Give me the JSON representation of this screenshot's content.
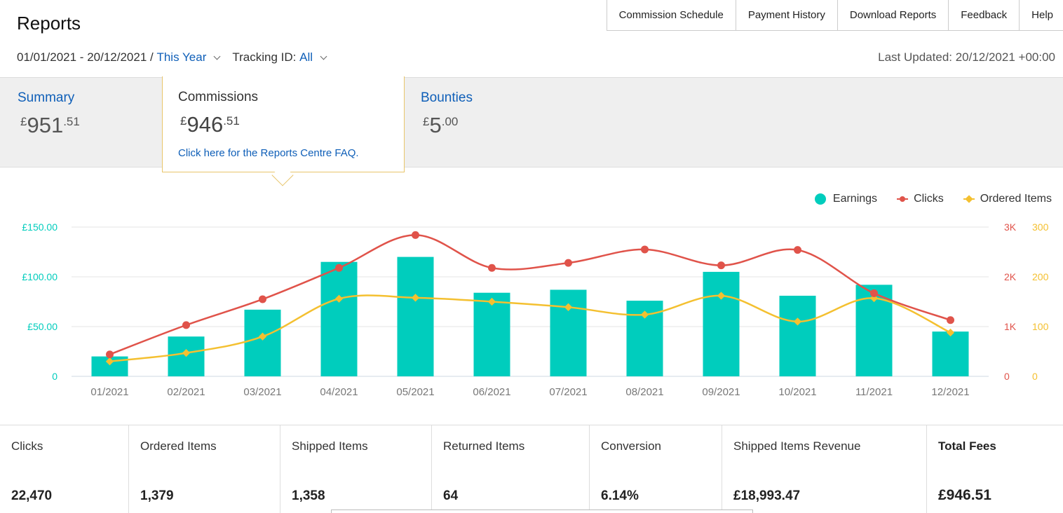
{
  "page": {
    "title": "Reports"
  },
  "top_nav": [
    "Commission Schedule",
    "Payment History",
    "Download Reports",
    "Feedback",
    "Help"
  ],
  "filters": {
    "date_range": "01/01/2021 - 20/12/2021 /",
    "period": "This Year",
    "tracking_label": "Tracking ID:",
    "tracking_value": "All",
    "last_updated": "Last Updated: 20/12/2021 +00:00"
  },
  "tabs": {
    "summary": {
      "label": "Summary",
      "currency": "£",
      "main": "951",
      "decimal": ".51"
    },
    "commissions": {
      "label": "Commissions",
      "currency": "£",
      "main": "946",
      "decimal": ".51",
      "faq_link": "Click here for the Reports Centre FAQ."
    },
    "bounties": {
      "label": "Bounties",
      "currency": "£",
      "main": "5",
      "decimal": ".00"
    }
  },
  "colors": {
    "earnings": "#00cdbd",
    "clicks": "#e0534a",
    "ordered": "#f4c030",
    "link": "#0f5fb8",
    "active_tab_border": "#e8c56a"
  },
  "chart_data": {
    "type": "bar",
    "categories": [
      "01/2021",
      "02/2021",
      "03/2021",
      "04/2021",
      "05/2021",
      "06/2021",
      "07/2021",
      "08/2021",
      "09/2021",
      "10/2021",
      "11/2021",
      "12/2021"
    ],
    "series": [
      {
        "name": "Earnings",
        "type": "bar",
        "axis": "left",
        "values": [
          20,
          40,
          67,
          115,
          120,
          84,
          87,
          76,
          105,
          81,
          92,
          45
        ]
      },
      {
        "name": "Clicks",
        "type": "line",
        "axis": "right-clicks",
        "values": [
          440,
          1030,
          1550,
          2180,
          2840,
          2180,
          2280,
          2550,
          2230,
          2540,
          1670,
          1130
        ]
      },
      {
        "name": "Ordered Items",
        "type": "line",
        "axis": "right-items",
        "values": [
          30,
          47,
          80,
          156,
          158,
          150,
          139,
          124,
          162,
          110,
          157,
          88
        ]
      }
    ],
    "y_left": {
      "ticks": [
        "0",
        "£50.00",
        "£100.00",
        "£150.00"
      ],
      "values": [
        0,
        50,
        100,
        150
      ],
      "ylim": [
        0,
        150
      ]
    },
    "y_right_clicks": {
      "ticks": [
        "0",
        "1K",
        "2K",
        "3K"
      ],
      "values": [
        0,
        1000,
        2000,
        3000
      ],
      "ylim": [
        0,
        3000
      ]
    },
    "y_right_items": {
      "ticks": [
        "0",
        "100",
        "200",
        "300"
      ],
      "values": [
        0,
        100,
        200,
        300
      ],
      "ylim": [
        0,
        300
      ]
    },
    "grid": true,
    "legend": "top-right"
  },
  "stats": [
    {
      "label": "Clicks",
      "value": "22,470"
    },
    {
      "label": "Ordered Items",
      "value": "1,379"
    },
    {
      "label": "Shipped Items",
      "value": "1,358"
    },
    {
      "label": "Returned Items",
      "value": "64"
    },
    {
      "label": "Conversion",
      "value": "6.14%"
    },
    {
      "label": "Shipped Items Revenue",
      "value": "£18,993.47"
    },
    {
      "label": "Total Fees",
      "value": "£946.51"
    }
  ]
}
